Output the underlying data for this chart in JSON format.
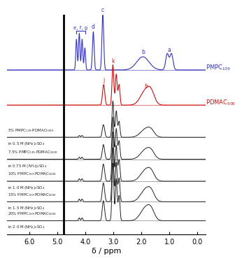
{
  "xlabel": "δ / ppm",
  "xlim": [
    6.8,
    -0.3
  ],
  "background_color": "#ffffff",
  "pmpc_color": "#3333bb",
  "pdmac_color": "#cc1111",
  "mix_color": "#222222",
  "pmpc_label": "PMPC$_{139}$",
  "pdmac_label": "PDMAC$_{500}$",
  "mix_labels": [
    "5% PMPC$_{139}$·PDMAC$_{5000}$",
    "in 0.5 M (NH$_4$)$_2$SO$_4$",
    "7.5% PMPC$_{139}$·PDMAC$_{5000}$",
    "in 0.75 M (NH$_4$)$_2$SO$_4$",
    "10% PMPC$_{139}$·PDMAC$_{5000}$",
    "in 1.0 M (NH$_4$)$_2$SO$_4$",
    "15% PMPC$_{139}$·PDMAC$_{5000}$",
    "in 1.5 M (NH$_4$)$_2$SO$_4$",
    "20% PMPC$_{139}$·PDMAC$_{5000}$",
    "in 2.0 M (NH$_4$)$_2$SO$_4$"
  ],
  "solvent_ppm": 4.78,
  "tick_positions": [
    6.0,
    5.0,
    4.0,
    3.0,
    2.0,
    1.0,
    0.0
  ]
}
